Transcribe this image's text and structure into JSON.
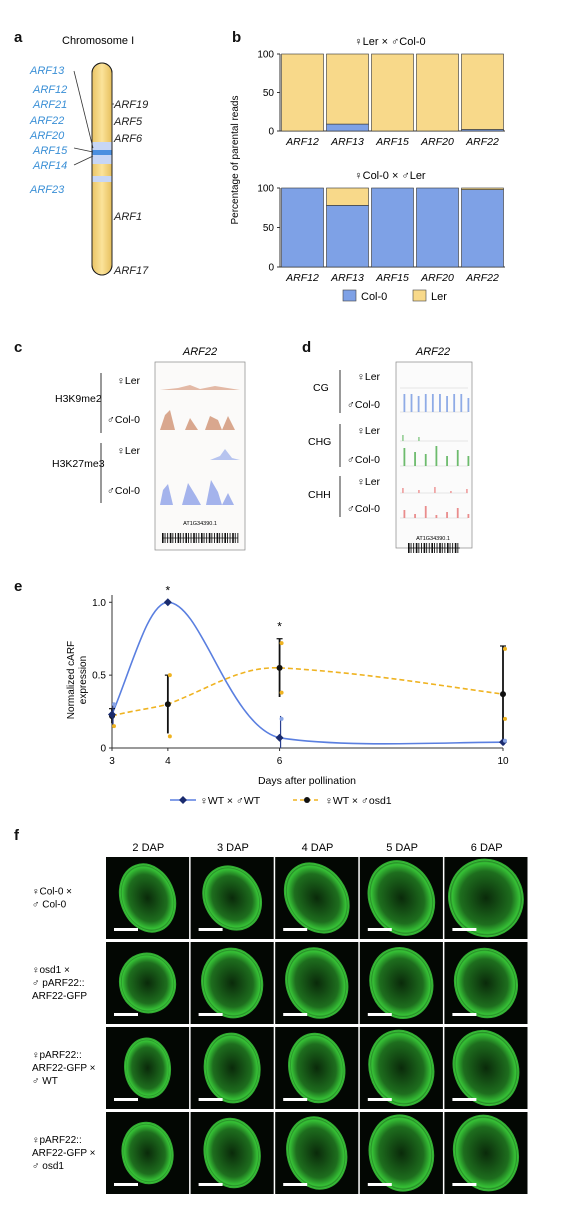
{
  "panel_a": {
    "label": "a",
    "title": "Chromosome I",
    "genes_blue": [
      "ARF13",
      "ARF12",
      "ARF21",
      "ARF22",
      "ARF20",
      "ARF15",
      "ARF14",
      "ARF23"
    ],
    "genes_black": [
      "ARF19",
      "ARF5",
      "ARF6",
      "ARF1",
      "ARF17"
    ]
  },
  "panel_b": {
    "label": "b",
    "ylabel": "Percentage of parental reads",
    "legend": [
      "Col-0",
      "Ler"
    ],
    "colors": {
      "col0": "#7ea1e6",
      "ler": "#f8d98a"
    }
  },
  "chart_data": [
    {
      "type": "bar",
      "title": "♀Ler × ♂Col-0",
      "categories": [
        "ARF12",
        "ARF13",
        "ARF15",
        "ARF20",
        "ARF22"
      ],
      "series": [
        {
          "name": "Col-0",
          "values": [
            0,
            9,
            0,
            0,
            2
          ]
        },
        {
          "name": "Ler",
          "values": [
            100,
            91,
            100,
            100,
            98
          ]
        }
      ],
      "ylim": [
        0,
        100
      ],
      "yticks": [
        "0",
        "50",
        "100"
      ]
    },
    {
      "type": "bar",
      "title": "♀Col-0 × ♂Ler",
      "categories": [
        "ARF12",
        "ARF13",
        "ARF15",
        "ARF20",
        "ARF22"
      ],
      "series": [
        {
          "name": "Col-0",
          "values": [
            100,
            78,
            100,
            100,
            98
          ]
        },
        {
          "name": "Ler",
          "values": [
            0,
            22,
            0,
            0,
            2
          ]
        }
      ],
      "ylim": [
        0,
        100
      ],
      "yticks": [
        "0",
        "50",
        "100"
      ]
    },
    {
      "type": "line",
      "xlabel": "Days after pollination",
      "ylabel": "Normalized cARF expression",
      "x": [
        3,
        4,
        6,
        10
      ],
      "xticks": [
        "3",
        "4",
        "6",
        "10"
      ],
      "yticks": [
        "0",
        "0.5",
        "1.0"
      ],
      "ylim": [
        0,
        1.05
      ],
      "xlim": [
        3,
        10
      ],
      "series": [
        {
          "name": "♀WT × ♂WT",
          "values": [
            0.23,
            1.0,
            0.07,
            0.04
          ],
          "err": [
            0.08,
            0.0,
            0.15,
            0.02
          ]
        },
        {
          "name": "♀WT × ♂osd1",
          "values": [
            0.22,
            0.3,
            0.55,
            0.37
          ],
          "err": [
            0.05,
            0.2,
            0.2,
            0.33
          ]
        }
      ],
      "stars": [
        "*",
        "*"
      ],
      "star_x": [
        4,
        6
      ]
    }
  ],
  "panel_c": {
    "label": "c",
    "gene": "ARF22",
    "marks": [
      "H3K9me2",
      "H3K27me3"
    ],
    "rows": [
      "♀Ler",
      "♂Col-0"
    ],
    "locus": "AT1G34390.1"
  },
  "panel_d": {
    "label": "d",
    "gene": "ARF22",
    "contexts": [
      "CG",
      "CHG",
      "CHH"
    ],
    "rows": [
      "♀Ler",
      "♂Col-0"
    ],
    "locus": "AT1G34390.1"
  },
  "panel_e": {
    "label": "e"
  },
  "panel_f": {
    "label": "f",
    "columns": [
      "2 DAP",
      "3 DAP",
      "4 DAP",
      "5 DAP",
      "6 DAP"
    ],
    "rows": [
      [
        "♀Col-0 ×",
        "♂ Col-0"
      ],
      [
        "♀osd1 ×",
        "♂ pARF22::",
        "ARF22-GFP"
      ],
      [
        "♀pARF22::",
        "ARF22-GFP ×",
        "♂ WT"
      ],
      [
        "♀pARF22::",
        "ARF22-GFP ×",
        "♂ osd1"
      ]
    ]
  }
}
